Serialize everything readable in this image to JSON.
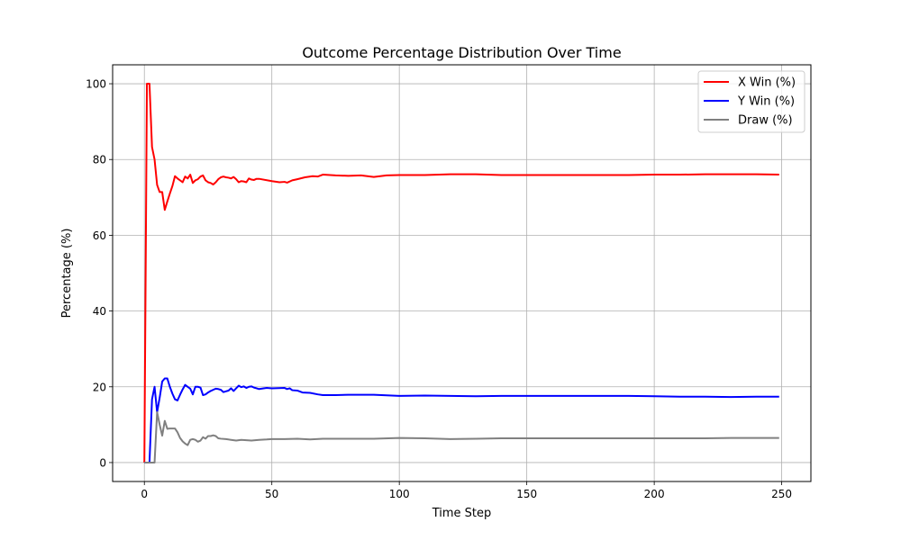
{
  "chart_data": {
    "type": "line",
    "title": "Outcome Percentage Distribution Over Time",
    "xlabel": "Time Step",
    "ylabel": "Percentage (%)",
    "xlim": [
      -12.45,
      261.45
    ],
    "ylim": [
      -5,
      105
    ],
    "xticks": [
      0,
      50,
      100,
      150,
      200,
      250
    ],
    "yticks": [
      0,
      20,
      40,
      60,
      80,
      100
    ],
    "grid": true,
    "legend_position": "top-right",
    "series": [
      {
        "name": "X Win (%)",
        "color": "#ff0000",
        "points": [
          [
            0,
            0
          ],
          [
            1,
            100
          ],
          [
            2,
            100
          ],
          [
            3,
            83.3
          ],
          [
            4,
            80
          ],
          [
            5,
            73.3
          ],
          [
            6,
            71.4
          ],
          [
            7,
            71.4
          ],
          [
            8,
            66.7
          ],
          [
            9,
            68.9
          ],
          [
            10,
            71
          ],
          [
            11,
            73
          ],
          [
            12,
            75.6
          ],
          [
            13,
            75
          ],
          [
            14,
            74.5
          ],
          [
            15,
            74
          ],
          [
            16,
            75.5
          ],
          [
            17,
            75
          ],
          [
            18,
            76
          ],
          [
            19,
            73.8
          ],
          [
            20,
            74.5
          ],
          [
            21,
            74.8
          ],
          [
            22,
            75.5
          ],
          [
            23,
            75.8
          ],
          [
            24,
            74.5
          ],
          [
            25,
            74
          ],
          [
            26,
            73.8
          ],
          [
            27,
            73.4
          ],
          [
            28,
            74
          ],
          [
            29,
            74.8
          ],
          [
            30,
            75.3
          ],
          [
            31,
            75.5
          ],
          [
            32,
            75.3
          ],
          [
            33,
            75.2
          ],
          [
            34,
            75
          ],
          [
            35,
            75.4
          ],
          [
            36,
            74.8
          ],
          [
            37,
            74
          ],
          [
            38,
            74.3
          ],
          [
            39,
            74.2
          ],
          [
            40,
            74
          ],
          [
            41,
            75
          ],
          [
            42,
            74.7
          ],
          [
            43,
            74.6
          ],
          [
            44,
            74.9
          ],
          [
            45,
            74.9
          ],
          [
            50,
            74.3
          ],
          [
            53,
            74
          ],
          [
            55,
            74.1
          ],
          [
            56,
            73.9
          ],
          [
            58,
            74.5
          ],
          [
            60,
            74.8
          ],
          [
            63,
            75.3
          ],
          [
            66,
            75.6
          ],
          [
            68,
            75.5
          ],
          [
            70,
            76
          ],
          [
            75,
            75.8
          ],
          [
            80,
            75.7
          ],
          [
            85,
            75.8
          ],
          [
            90,
            75.4
          ],
          [
            95,
            75.8
          ],
          [
            100,
            75.9
          ],
          [
            110,
            75.9
          ],
          [
            120,
            76.1
          ],
          [
            130,
            76.1
          ],
          [
            140,
            75.9
          ],
          [
            150,
            75.9
          ],
          [
            160,
            75.9
          ],
          [
            170,
            75.9
          ],
          [
            180,
            75.9
          ],
          [
            190,
            75.9
          ],
          [
            200,
            76
          ],
          [
            210,
            76
          ],
          [
            220,
            76.1
          ],
          [
            230,
            76.1
          ],
          [
            240,
            76.1
          ],
          [
            249,
            76
          ]
        ]
      },
      {
        "name": "Y Win (%)",
        "color": "#0000ff",
        "points": [
          [
            0,
            0
          ],
          [
            1,
            0
          ],
          [
            2,
            0
          ],
          [
            3,
            16.7
          ],
          [
            4,
            20
          ],
          [
            5,
            13.3
          ],
          [
            6,
            17.1
          ],
          [
            7,
            21.4
          ],
          [
            8,
            22.2
          ],
          [
            9,
            22.2
          ],
          [
            10,
            20
          ],
          [
            11,
            18.2
          ],
          [
            12,
            16.7
          ],
          [
            13,
            16.4
          ],
          [
            14,
            17.9
          ],
          [
            15,
            19.3
          ],
          [
            16,
            20.5
          ],
          [
            17,
            20
          ],
          [
            18,
            19.5
          ],
          [
            19,
            18
          ],
          [
            20,
            20
          ],
          [
            21,
            20
          ],
          [
            22,
            19.8
          ],
          [
            23,
            17.8
          ],
          [
            24,
            18
          ],
          [
            25,
            18.5
          ],
          [
            26,
            18.9
          ],
          [
            27,
            19.2
          ],
          [
            28,
            19.5
          ],
          [
            29,
            19.4
          ],
          [
            30,
            19.2
          ],
          [
            31,
            18.6
          ],
          [
            32,
            18.8
          ],
          [
            33,
            19
          ],
          [
            34,
            19.6
          ],
          [
            35,
            18.9
          ],
          [
            36,
            19.6
          ],
          [
            37,
            20.3
          ],
          [
            38,
            19.9
          ],
          [
            39,
            20.1
          ],
          [
            40,
            19.7
          ],
          [
            41,
            20
          ],
          [
            42,
            20.1
          ],
          [
            43,
            19.8
          ],
          [
            44,
            19.6
          ],
          [
            45,
            19.4
          ],
          [
            48,
            19.7
          ],
          [
            50,
            19.6
          ],
          [
            55,
            19.7
          ],
          [
            56,
            19.4
          ],
          [
            57,
            19.6
          ],
          [
            58,
            19.1
          ],
          [
            60,
            19
          ],
          [
            62,
            18.5
          ],
          [
            65,
            18.4
          ],
          [
            68,
            18
          ],
          [
            70,
            17.8
          ],
          [
            75,
            17.8
          ],
          [
            80,
            17.9
          ],
          [
            90,
            17.9
          ],
          [
            100,
            17.6
          ],
          [
            110,
            17.7
          ],
          [
            120,
            17.6
          ],
          [
            130,
            17.5
          ],
          [
            140,
            17.6
          ],
          [
            150,
            17.6
          ],
          [
            160,
            17.6
          ],
          [
            170,
            17.6
          ],
          [
            180,
            17.6
          ],
          [
            190,
            17.6
          ],
          [
            200,
            17.5
          ],
          [
            210,
            17.4
          ],
          [
            220,
            17.4
          ],
          [
            230,
            17.3
          ],
          [
            240,
            17.4
          ],
          [
            249,
            17.4
          ]
        ]
      },
      {
        "name": "Draw (%)",
        "color": "#808080",
        "points": [
          [
            0,
            0
          ],
          [
            1,
            0
          ],
          [
            2,
            0
          ],
          [
            3,
            0
          ],
          [
            4,
            0
          ],
          [
            5,
            13.3
          ],
          [
            6,
            10
          ],
          [
            7,
            7.1
          ],
          [
            8,
            11
          ],
          [
            9,
            8.9
          ],
          [
            10,
            9
          ],
          [
            11,
            9
          ],
          [
            12,
            9
          ],
          [
            13,
            8
          ],
          [
            14,
            6.5
          ],
          [
            15,
            5.6
          ],
          [
            16,
            5
          ],
          [
            17,
            4.6
          ],
          [
            18,
            6
          ],
          [
            19,
            6.2
          ],
          [
            20,
            6
          ],
          [
            21,
            5.5
          ],
          [
            22,
            5.8
          ],
          [
            23,
            6.7
          ],
          [
            24,
            6.3
          ],
          [
            25,
            7
          ],
          [
            26,
            7
          ],
          [
            27,
            7.2
          ],
          [
            28,
            7
          ],
          [
            29,
            6.4
          ],
          [
            30,
            6.3
          ],
          [
            32,
            6.2
          ],
          [
            34,
            6
          ],
          [
            36,
            5.8
          ],
          [
            38,
            6
          ],
          [
            40,
            5.9
          ],
          [
            42,
            5.8
          ],
          [
            45,
            6
          ],
          [
            48,
            6.1
          ],
          [
            50,
            6.2
          ],
          [
            55,
            6.2
          ],
          [
            60,
            6.3
          ],
          [
            65,
            6.1
          ],
          [
            70,
            6.3
          ],
          [
            80,
            6.3
          ],
          [
            90,
            6.3
          ],
          [
            100,
            6.5
          ],
          [
            110,
            6.4
          ],
          [
            120,
            6.2
          ],
          [
            130,
            6.3
          ],
          [
            140,
            6.4
          ],
          [
            150,
            6.4
          ],
          [
            160,
            6.4
          ],
          [
            170,
            6.4
          ],
          [
            180,
            6.4
          ],
          [
            190,
            6.4
          ],
          [
            200,
            6.4
          ],
          [
            210,
            6.4
          ],
          [
            220,
            6.4
          ],
          [
            230,
            6.5
          ],
          [
            240,
            6.5
          ],
          [
            249,
            6.5
          ]
        ]
      }
    ]
  }
}
